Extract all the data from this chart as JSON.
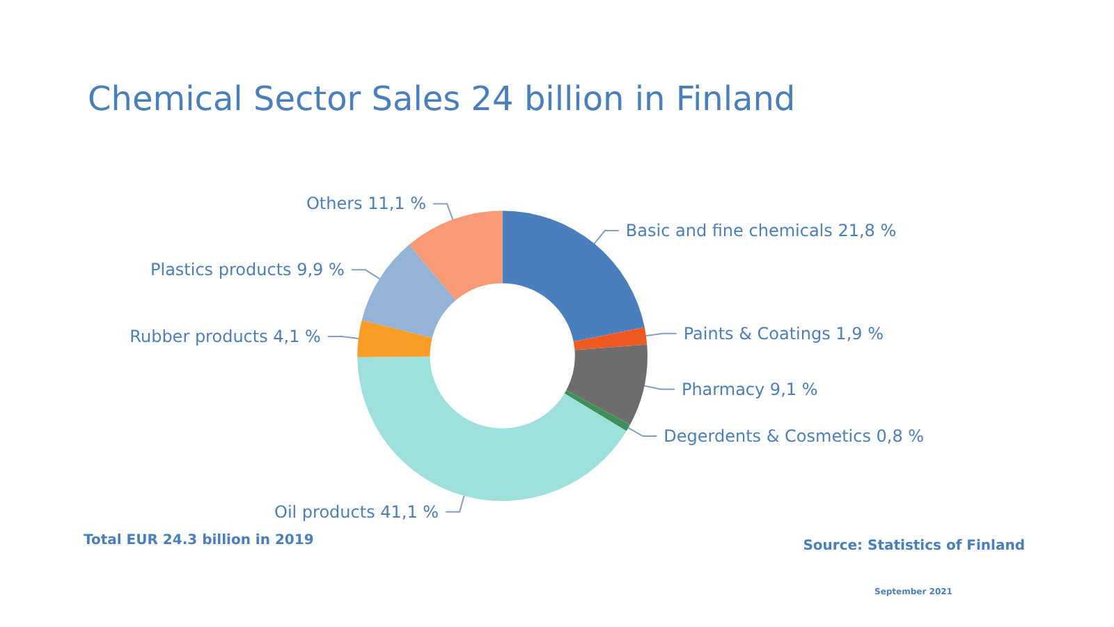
{
  "chart_data": {
    "type": "donut",
    "title": "Chemical Sector Sales 24 billion in Finland",
    "categories": [
      "Basic and fine chemicals",
      "Paints & Coatings",
      "Pharmacy",
      "Degerdents & Cosmetics",
      "Oil products",
      "Rubber products",
      "Plastics products",
      "Others"
    ],
    "values": [
      21.8,
      1.9,
      9.1,
      0.8,
      41.1,
      4.1,
      9.9,
      11.1
    ],
    "value_labels": [
      "21,8 %",
      "1,9 %",
      "9,1 %",
      "0,8 %",
      "41,1 %",
      "4,1 %",
      "9,9 %",
      "11,1 %"
    ],
    "colors": [
      "#4a7fbd",
      "#f05a22",
      "#6d6d6d",
      "#3f8f5a",
      "#9de0dc",
      "#f99d27",
      "#95b3d7",
      "#f79a75"
    ],
    "legend": false,
    "annotations": [
      "Total EUR 24.3 billion in 2019",
      "Source: Statistics of Finland",
      "September 2021"
    ]
  }
}
